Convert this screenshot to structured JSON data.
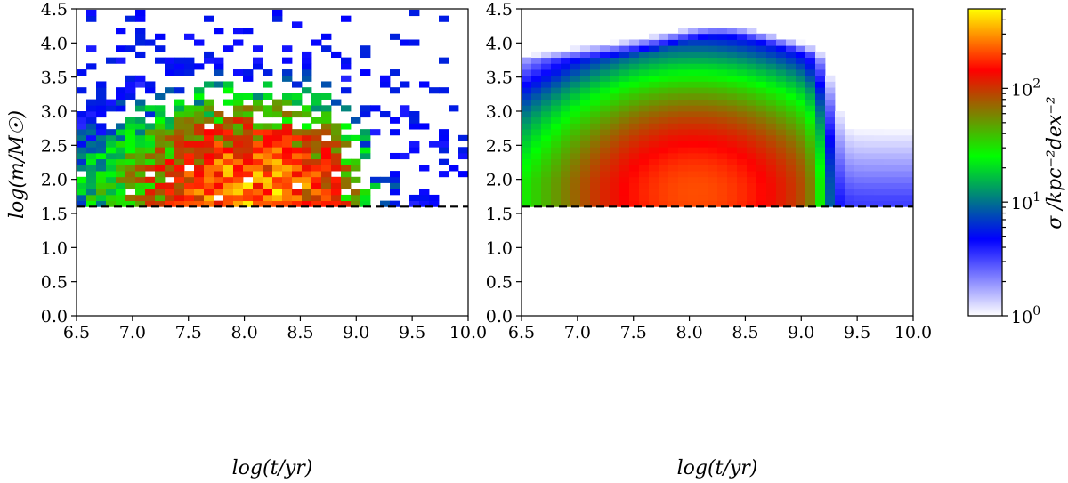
{
  "chart_data": [
    {
      "id": "left",
      "type": "heatmap",
      "variant": "scattered",
      "xlabel": "log(t/yr)",
      "ylabel": "log(m/M☉)",
      "xlim": [
        6.5,
        10.0
      ],
      "ylim": [
        0.0,
        4.5
      ],
      "xticks": [
        "6.5",
        "7.0",
        "7.5",
        "8.0",
        "8.5",
        "9.0",
        "9.5",
        "10.0"
      ],
      "yticks": [
        "0.0",
        "0.5",
        "1.0",
        "1.5",
        "2.0",
        "2.5",
        "3.0",
        "3.5",
        "4.0",
        "4.5"
      ],
      "bin_width_x": 0.0875,
      "bin_width_y": 0.0875,
      "density_peak": {
        "x": 8.1,
        "y": 1.85,
        "value": 300
      },
      "dashed_line_y": 1.6,
      "fill_range": {
        "x": [
          6.5,
          10.0
        ],
        "y": [
          1.6,
          4.45
        ]
      }
    },
    {
      "id": "right",
      "type": "heatmap",
      "variant": "smooth",
      "xlabel": "log(t/yr)",
      "xlim": [
        6.5,
        10.0
      ],
      "ylim": [
        0.0,
        4.5
      ],
      "xticks": [
        "6.5",
        "7.0",
        "7.5",
        "8.0",
        "8.5",
        "9.0",
        "9.5",
        "10.0"
      ],
      "yticks": [
        "0.0",
        "0.5",
        "1.0",
        "1.5",
        "2.0",
        "2.5",
        "3.0",
        "3.5",
        "4.0",
        "4.5"
      ],
      "bin_width_x": 0.0875,
      "bin_width_y": 0.0875,
      "density_peak": {
        "x": 8.05,
        "y": 1.8,
        "value": 200
      },
      "dashed_line_y": 1.6,
      "fill_range": {
        "x": [
          6.5,
          10.0
        ],
        "y": [
          1.6,
          4.2
        ]
      }
    }
  ],
  "colorbar": {
    "scale": "log",
    "range": [
      1,
      500
    ],
    "ticks": [
      {
        "value": 1,
        "base": "10",
        "exp": "0"
      },
      {
        "value": 10,
        "base": "10",
        "exp": "1"
      },
      {
        "value": 100,
        "base": "10",
        "exp": "2"
      }
    ],
    "label": "σ /kpc⁻²dex⁻²",
    "colormap": [
      "#ffffff",
      "#0000ff",
      "#00ff00",
      "#ff0000",
      "#ffff00"
    ]
  }
}
